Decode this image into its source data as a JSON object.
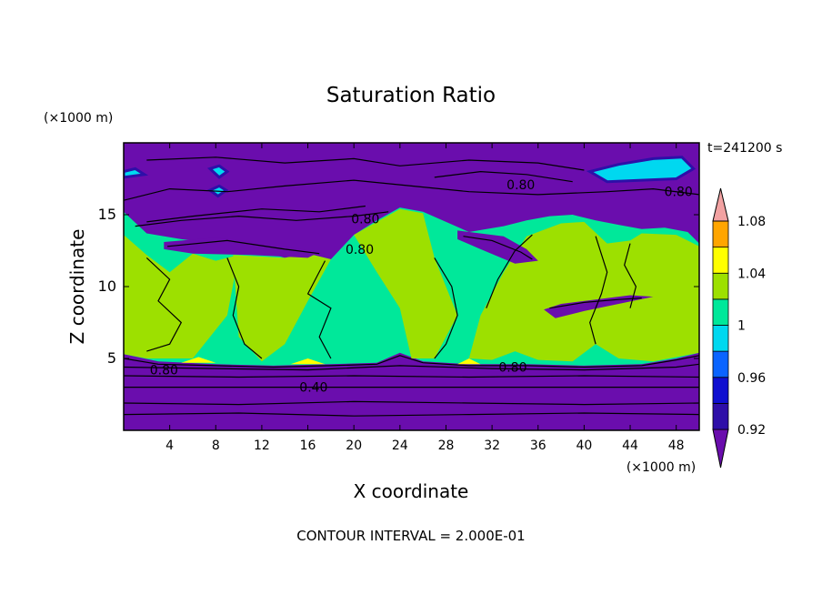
{
  "chart_data": {
    "type": "heatmap",
    "title": "Saturation Ratio",
    "xlabel": "X coordinate",
    "ylabel": "Z coordinate",
    "x_unit": "(×1000 m)",
    "y_unit": "(×1000 m)",
    "time_label": "t=241200 s",
    "footer": "CONTOUR INTERVAL = 2.000E-01",
    "xlim": [
      0,
      50
    ],
    "ylim": [
      0,
      20
    ],
    "x_ticks": [
      {
        "value": 4,
        "label": "4"
      },
      {
        "value": 8,
        "label": "8"
      },
      {
        "value": 12,
        "label": "12"
      },
      {
        "value": 16,
        "label": "16"
      },
      {
        "value": 20,
        "label": "20"
      },
      {
        "value": 24,
        "label": "24"
      },
      {
        "value": 28,
        "label": "28"
      },
      {
        "value": 32,
        "label": "32"
      },
      {
        "value": 36,
        "label": "36"
      },
      {
        "value": 40,
        "label": "40"
      },
      {
        "value": 44,
        "label": "44"
      },
      {
        "value": 48,
        "label": "48"
      }
    ],
    "y_ticks": [
      {
        "value": 5,
        "label": "5"
      },
      {
        "value": 10,
        "label": "10"
      },
      {
        "value": 15,
        "label": "15"
      }
    ],
    "colorbar": {
      "levels": [
        0.9,
        0.92,
        0.94,
        0.96,
        0.98,
        1.0,
        1.02,
        1.04,
        1.06,
        1.08,
        1.1
      ],
      "colors": [
        "#6a0dad",
        "#2e0fa8",
        "#0f0fd0",
        "#0a64ff",
        "#00d8f0",
        "#00e89a",
        "#9de000",
        "#ffff00",
        "#ffa500",
        "#ff3300",
        "#f2a2a2"
      ],
      "labels": [
        {
          "value": 0.92,
          "label": "0.92"
        },
        {
          "value": 0.96,
          "label": "0.96"
        },
        {
          "value": 1.0,
          "label": "1"
        },
        {
          "value": 1.04,
          "label": "1.04"
        },
        {
          "value": 1.08,
          "label": "1.08"
        }
      ]
    },
    "contour_labels": [
      {
        "x": 34.5,
        "z": 17.1,
        "label": "0.80"
      },
      {
        "x": 48.2,
        "z": 16.6,
        "label": "0.80"
      },
      {
        "x": 21.0,
        "z": 14.7,
        "label": "0.80"
      },
      {
        "x": 20.5,
        "z": 12.6,
        "label": "0.80"
      },
      {
        "x": 3.5,
        "z": 4.2,
        "label": "0.80"
      },
      {
        "x": 33.8,
        "z": 4.4,
        "label": "0.80"
      },
      {
        "x": 16.5,
        "z": 3.0,
        "label": "0.40"
      }
    ],
    "regions": {
      "green_upper_boundary": [
        [
          0,
          15.2
        ],
        [
          2,
          13.7
        ],
        [
          5,
          13.3
        ],
        [
          8,
          13.0
        ],
        [
          11,
          12.7
        ],
        [
          14,
          12.0
        ],
        [
          16,
          12.3
        ],
        [
          18,
          11.9
        ],
        [
          20,
          13.6
        ],
        [
          22,
          14.6
        ],
        [
          24,
          15.5
        ],
        [
          26,
          15.2
        ],
        [
          28,
          14.5
        ],
        [
          30,
          13.8
        ],
        [
          33,
          14.2
        ],
        [
          35,
          14.6
        ],
        [
          37,
          14.9
        ],
        [
          39,
          15.0
        ],
        [
          41,
          14.6
        ],
        [
          43,
          14.3
        ],
        [
          45,
          14.0
        ],
        [
          47,
          14.1
        ],
        [
          49,
          13.8
        ],
        [
          50,
          13.0
        ]
      ],
      "green_lower_boundary": [
        [
          0,
          5.3
        ],
        [
          3,
          4.8
        ],
        [
          8,
          4.6
        ],
        [
          13,
          4.5
        ],
        [
          18,
          4.6
        ],
        [
          22,
          4.7
        ],
        [
          24,
          5.4
        ],
        [
          26,
          4.8
        ],
        [
          30,
          4.6
        ],
        [
          35,
          4.6
        ],
        [
          40,
          4.5
        ],
        [
          45,
          4.6
        ],
        [
          48,
          5.0
        ],
        [
          50,
          5.4
        ]
      ],
      "lime_zones": [
        [
          [
            0,
            13.6
          ],
          [
            2,
            12.2
          ],
          [
            4,
            11.0
          ],
          [
            6,
            12.3
          ],
          [
            8,
            11.8
          ],
          [
            10,
            12.2
          ],
          [
            9,
            8.0
          ],
          [
            6,
            5.0
          ],
          [
            2,
            5.0
          ],
          [
            0,
            5.3
          ]
        ],
        [
          [
            9.5,
            12.2
          ],
          [
            14,
            12.0
          ],
          [
            16,
            12.3
          ],
          [
            18,
            11.9
          ],
          [
            16,
            9.0
          ],
          [
            14,
            6.0
          ],
          [
            12,
            4.8
          ],
          [
            10,
            6.5
          ]
        ],
        [
          [
            20,
            13.6
          ],
          [
            22,
            14.5
          ],
          [
            24,
            15.4
          ],
          [
            26,
            15.1
          ],
          [
            27,
            12.0
          ],
          [
            29,
            8.0
          ],
          [
            27,
            5.0
          ],
          [
            25,
            5.0
          ],
          [
            24,
            8.5
          ],
          [
            22,
            11.0
          ]
        ],
        [
          [
            31,
            8.0
          ],
          [
            33,
            11.0
          ],
          [
            35,
            13.5
          ],
          [
            38,
            14.4
          ],
          [
            40,
            14.5
          ],
          [
            42,
            13.0
          ],
          [
            44,
            13.2
          ],
          [
            45,
            13.7
          ],
          [
            48,
            13.6
          ],
          [
            50,
            12.8
          ],
          [
            50,
            5.4
          ],
          [
            46,
            4.8
          ],
          [
            43,
            5.0
          ],
          [
            41,
            6.0
          ],
          [
            39,
            4.8
          ],
          [
            36,
            4.9
          ],
          [
            34,
            5.5
          ],
          [
            32,
            4.9
          ],
          [
            30,
            5.0
          ]
        ]
      ],
      "yellow_zones": [
        [
          [
            5,
            4.7
          ],
          [
            6.5,
            5.1
          ],
          [
            8,
            4.7
          ]
        ],
        [
          [
            14.5,
            4.6
          ],
          [
            16,
            5.0
          ],
          [
            17.5,
            4.6
          ]
        ],
        [
          [
            29,
            4.6
          ],
          [
            30,
            5.0
          ],
          [
            31,
            4.6
          ]
        ]
      ],
      "purple_intrusions": [
        [
          [
            3.5,
            13.1
          ],
          [
            8,
            13.4
          ],
          [
            13,
            12.9
          ],
          [
            17,
            12.4
          ],
          [
            16,
            12.0
          ],
          [
            11,
            12.2
          ],
          [
            6,
            12.3
          ],
          [
            3.5,
            12.6
          ]
        ],
        [
          [
            29,
            13.9
          ],
          [
            33,
            13.5
          ],
          [
            35,
            12.6
          ],
          [
            36,
            11.8
          ],
          [
            34,
            11.6
          ],
          [
            31,
            12.6
          ],
          [
            29,
            13.3
          ]
        ],
        [
          [
            36.5,
            8.4
          ],
          [
            38,
            8.8
          ],
          [
            41,
            9.1
          ],
          [
            44,
            9.4
          ],
          [
            46,
            9.3
          ],
          [
            43,
            8.8
          ],
          [
            40,
            8.3
          ],
          [
            37.5,
            7.8
          ]
        ]
      ],
      "cyan_clouds": [
        [
          [
            40.5,
            18.0
          ],
          [
            43,
            18.5
          ],
          [
            46,
            18.9
          ],
          [
            48.5,
            19.0
          ],
          [
            49.5,
            18.2
          ],
          [
            48,
            17.5
          ],
          [
            45,
            17.4
          ],
          [
            42,
            17.3
          ]
        ],
        [
          [
            7.5,
            18.2
          ],
          [
            8.3,
            18.4
          ],
          [
            9,
            18.0
          ],
          [
            8.3,
            17.6
          ]
        ],
        [
          [
            7.5,
            16.7
          ],
          [
            8.3,
            17.0
          ],
          [
            8.9,
            16.7
          ],
          [
            8.2,
            16.3
          ]
        ],
        [
          [
            0,
            18.0
          ],
          [
            1,
            18.2
          ],
          [
            1.8,
            17.8
          ],
          [
            0,
            17.6
          ]
        ]
      ]
    },
    "contours": [
      [
        [
          0,
          1.1
        ],
        [
          10,
          1.2
        ],
        [
          20,
          1.0
        ],
        [
          30,
          1.1
        ],
        [
          40,
          1.2
        ],
        [
          50,
          1.1
        ]
      ],
      [
        [
          0,
          1.9
        ],
        [
          10,
          1.8
        ],
        [
          20,
          2.0
        ],
        [
          30,
          1.9
        ],
        [
          40,
          1.8
        ],
        [
          50,
          1.9
        ]
      ],
      [
        [
          0,
          3.0
        ],
        [
          10,
          3.0
        ],
        [
          20,
          3.0
        ],
        [
          30,
          3.0
        ],
        [
          40,
          3.0
        ],
        [
          50,
          3.0
        ]
      ],
      [
        [
          0,
          3.8
        ],
        [
          10,
          3.7
        ],
        [
          20,
          3.8
        ],
        [
          30,
          3.7
        ],
        [
          40,
          3.8
        ],
        [
          50,
          3.7
        ]
      ],
      [
        [
          0,
          4.4
        ],
        [
          8,
          4.3
        ],
        [
          16,
          4.2
        ],
        [
          24,
          4.5
        ],
        [
          32,
          4.3
        ],
        [
          40,
          4.2
        ],
        [
          48,
          4.4
        ],
        [
          50,
          4.6
        ]
      ],
      [
        [
          0,
          5.0
        ],
        [
          3,
          4.6
        ],
        [
          8,
          4.5
        ],
        [
          13,
          4.4
        ],
        [
          18,
          4.5
        ],
        [
          22,
          4.6
        ],
        [
          24,
          5.2
        ],
        [
          26,
          4.7
        ],
        [
          30,
          4.5
        ],
        [
          35,
          4.5
        ],
        [
          40,
          4.4
        ],
        [
          45,
          4.5
        ],
        [
          48,
          4.9
        ],
        [
          50,
          5.2
        ]
      ],
      [
        [
          0,
          16.0
        ],
        [
          4,
          16.8
        ],
        [
          9,
          16.6
        ],
        [
          14,
          17.0
        ],
        [
          20,
          17.4
        ],
        [
          25,
          17.0
        ],
        [
          30,
          16.6
        ],
        [
          36,
          16.4
        ],
        [
          42,
          16.6
        ],
        [
          46,
          16.8
        ],
        [
          50,
          16.4
        ]
      ],
      [
        [
          2,
          18.8
        ],
        [
          8,
          19.0
        ],
        [
          14,
          18.6
        ],
        [
          20,
          18.9
        ],
        [
          24,
          18.4
        ],
        [
          30,
          18.8
        ],
        [
          36,
          18.6
        ],
        [
          40,
          18.1
        ]
      ],
      [
        [
          1,
          14.2
        ],
        [
          5,
          14.6
        ],
        [
          10,
          14.9
        ],
        [
          15,
          14.6
        ],
        [
          20,
          14.9
        ],
        [
          23,
          15.2
        ]
      ],
      [
        [
          2,
          14.5
        ],
        [
          6,
          14.9
        ],
        [
          12,
          15.4
        ],
        [
          17,
          15.2
        ],
        [
          21,
          15.6
        ]
      ],
      [
        [
          27,
          17.6
        ],
        [
          31,
          18.0
        ],
        [
          35,
          17.8
        ],
        [
          39,
          17.3
        ]
      ],
      [
        [
          3.8,
          12.8
        ],
        [
          9,
          13.2
        ],
        [
          14,
          12.6
        ],
        [
          17,
          12.3
        ]
      ],
      [
        [
          29.5,
          13.5
        ],
        [
          32,
          13.2
        ],
        [
          34.5,
          12.4
        ],
        [
          35.5,
          11.9
        ]
      ],
      [
        [
          37,
          8.5
        ],
        [
          40,
          8.9
        ],
        [
          43,
          9.1
        ],
        [
          45,
          9.2
        ]
      ],
      [
        [
          2,
          12.0
        ],
        [
          4,
          10.5
        ],
        [
          3,
          9.0
        ],
        [
          5,
          7.5
        ],
        [
          4,
          6.0
        ],
        [
          2,
          5.5
        ]
      ],
      [
        [
          9,
          12.0
        ],
        [
          10,
          10.0
        ],
        [
          9.5,
          8.0
        ],
        [
          10.5,
          6.0
        ],
        [
          12,
          5.0
        ]
      ],
      [
        [
          17.5,
          11.8
        ],
        [
          16,
          9.5
        ],
        [
          18,
          8.5
        ],
        [
          17,
          6.5
        ],
        [
          18,
          5.0
        ]
      ],
      [
        [
          27.0,
          12.0
        ],
        [
          28.5,
          10.0
        ],
        [
          29,
          8.0
        ],
        [
          28,
          6.0
        ],
        [
          27,
          5.0
        ]
      ],
      [
        [
          31.5,
          8.5
        ],
        [
          32.5,
          10.5
        ],
        [
          34,
          12.5
        ],
        [
          35.5,
          13.6
        ]
      ],
      [
        [
          41,
          13.5
        ],
        [
          42,
          11.0
        ],
        [
          41.5,
          9.5
        ],
        [
          40.5,
          7.5
        ],
        [
          41,
          6.0
        ]
      ],
      [
        [
          44,
          13.0
        ],
        [
          43.5,
          11.5
        ],
        [
          44.5,
          10.0
        ],
        [
          44,
          8.5
        ]
      ]
    ]
  }
}
